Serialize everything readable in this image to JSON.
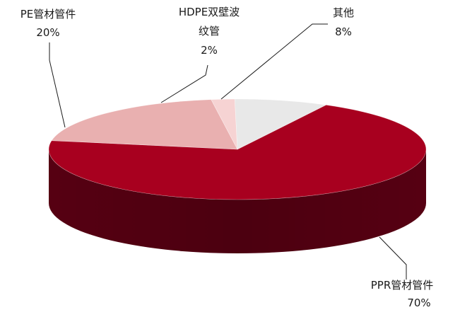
{
  "chart_data": {
    "type": "pie",
    "style": "3d-pie",
    "title": "",
    "legend": "none",
    "unit": "%",
    "slices": [
      {
        "name": "PPR管材管件",
        "value": 70,
        "label_lines": [
          "PPR管材管件",
          "70%"
        ],
        "color": "#a8001f",
        "side_color": "#560012",
        "label_position": "bottom-right"
      },
      {
        "name": "PE管材管件",
        "value": 20,
        "label_lines": [
          "PE管材管件",
          "20%"
        ],
        "color": "#e9b0b0",
        "side_color": "#a86a6a",
        "label_position": "top-left"
      },
      {
        "name": "HDPE双壁波纹管",
        "value": 2,
        "label_lines": [
          "HDPE双壁波",
          "纹管",
          "2%"
        ],
        "color": "#f6d3d3",
        "side_color": "#c49b9b",
        "label_position": "top-center"
      },
      {
        "name": "其他",
        "value": 8,
        "label_lines": [
          "其他",
          "8%"
        ],
        "color": "#e8e8e8",
        "side_color": "#b0b0b0",
        "label_position": "top-right"
      }
    ]
  }
}
